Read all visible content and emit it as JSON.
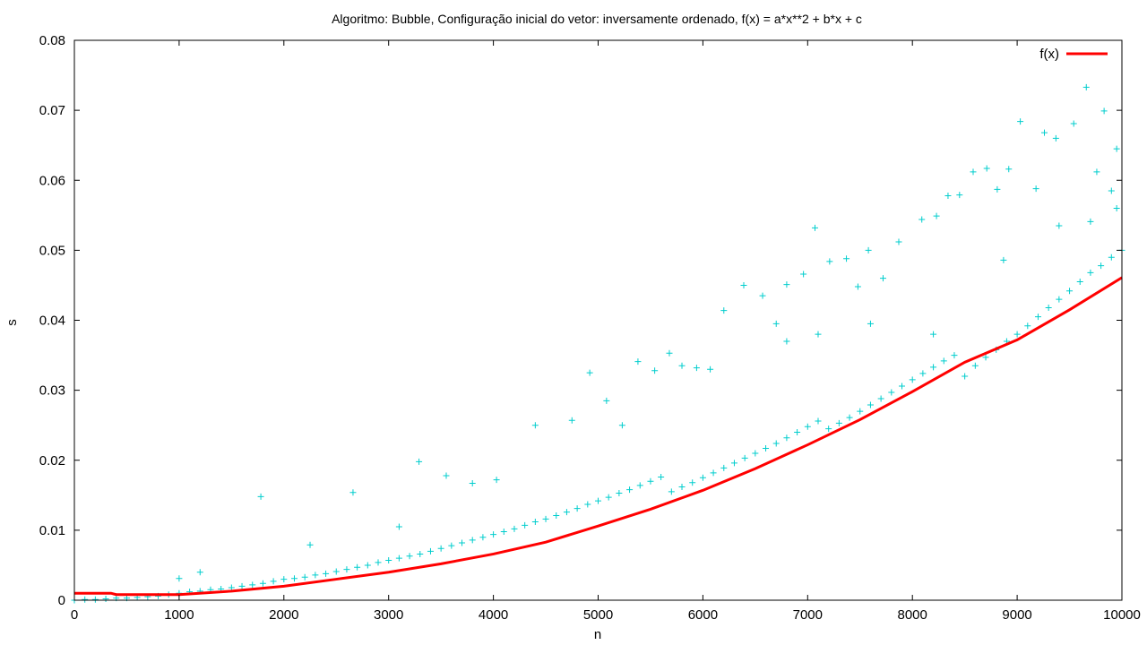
{
  "chart_data": {
    "type": "scatter",
    "title": "Algoritmo: Bubble, Configuração inicial do vetor: inversamente ordenado, f(x) = a*x**2 + b*x + c",
    "xlabel": "n",
    "ylabel": "s",
    "xlim": [
      0,
      10000
    ],
    "ylim": [
      0,
      0.08
    ],
    "x_ticks": [
      0,
      1000,
      2000,
      3000,
      4000,
      5000,
      6000,
      7000,
      8000,
      9000,
      10000
    ],
    "x_tick_labels": [
      "0",
      "1000",
      "2000",
      "3000",
      "4000",
      "5000",
      "6000",
      "7000",
      "8000",
      "9000",
      "10000"
    ],
    "y_ticks": [
      0,
      0.01,
      0.02,
      0.03,
      0.04,
      0.05,
      0.06,
      0.07,
      0.08
    ],
    "y_tick_labels": [
      "0",
      "0.01",
      "0.02",
      "0.03",
      "0.04",
      "0.05",
      "0.06",
      "0.07",
      "0.08"
    ],
    "grid": false,
    "legend": {
      "placement": "top-right",
      "entries": [
        "f(x)"
      ]
    },
    "series": [
      {
        "kind": "scatter",
        "marker": "+",
        "color": "#00cdcd",
        "points": [
          [
            0,
            0
          ],
          [
            100,
            0.0001
          ],
          [
            200,
            0.0001
          ],
          [
            300,
            0.0002
          ],
          [
            400,
            0.0003
          ],
          [
            500,
            0.0003
          ],
          [
            600,
            0.0004
          ],
          [
            700,
            0.0005
          ],
          [
            800,
            0.0006
          ],
          [
            900,
            0.0008
          ],
          [
            1000,
            0.001
          ],
          [
            1100,
            0.0012
          ],
          [
            1200,
            0.0013
          ],
          [
            1300,
            0.0015
          ],
          [
            1400,
            0.0016
          ],
          [
            1500,
            0.0018
          ],
          [
            1600,
            0.002
          ],
          [
            1700,
            0.0022
          ],
          [
            1800,
            0.0024
          ],
          [
            1900,
            0.0027
          ],
          [
            2000,
            0.003
          ],
          [
            2100,
            0.0031
          ],
          [
            2200,
            0.0033
          ],
          [
            2300,
            0.0036
          ],
          [
            2400,
            0.0038
          ],
          [
            2500,
            0.0041
          ],
          [
            2600,
            0.0044
          ],
          [
            2700,
            0.0047
          ],
          [
            2800,
            0.005
          ],
          [
            2900,
            0.0054
          ],
          [
            3000,
            0.0057
          ],
          [
            3100,
            0.006
          ],
          [
            3200,
            0.0063
          ],
          [
            3300,
            0.0066
          ],
          [
            3400,
            0.007
          ],
          [
            3500,
            0.0074
          ],
          [
            3600,
            0.0078
          ],
          [
            3700,
            0.0082
          ],
          [
            3800,
            0.0086
          ],
          [
            3900,
            0.009
          ],
          [
            4000,
            0.0094
          ],
          [
            4100,
            0.0098
          ],
          [
            4200,
            0.0102
          ],
          [
            4300,
            0.0107
          ],
          [
            4400,
            0.0112
          ],
          [
            4500,
            0.0116
          ],
          [
            4600,
            0.0121
          ],
          [
            4700,
            0.0126
          ],
          [
            4800,
            0.0131
          ],
          [
            4900,
            0.0137
          ],
          [
            5000,
            0.0142
          ],
          [
            5100,
            0.0147
          ],
          [
            5200,
            0.0153
          ],
          [
            5300,
            0.0158
          ],
          [
            5400,
            0.0164
          ],
          [
            5500,
            0.017
          ],
          [
            5600,
            0.0176
          ],
          [
            5700,
            0.0155
          ],
          [
            5800,
            0.0162
          ],
          [
            5900,
            0.0168
          ],
          [
            6000,
            0.0175
          ],
          [
            6100,
            0.0182
          ],
          [
            6200,
            0.0189
          ],
          [
            6300,
            0.0196
          ],
          [
            6400,
            0.0203
          ],
          [
            6500,
            0.021
          ],
          [
            6600,
            0.0217
          ],
          [
            6700,
            0.0224
          ],
          [
            6800,
            0.0232
          ],
          [
            6900,
            0.024
          ],
          [
            7000,
            0.0248
          ],
          [
            7100,
            0.0256
          ],
          [
            7200,
            0.0245
          ],
          [
            7300,
            0.0253
          ],
          [
            7400,
            0.0261
          ],
          [
            7500,
            0.027
          ],
          [
            7600,
            0.0279
          ],
          [
            7700,
            0.0288
          ],
          [
            7800,
            0.0297
          ],
          [
            7900,
            0.0306
          ],
          [
            8000,
            0.0315
          ],
          [
            8100,
            0.0324
          ],
          [
            8200,
            0.0333
          ],
          [
            8300,
            0.0342
          ],
          [
            8400,
            0.035
          ],
          [
            8500,
            0.032
          ],
          [
            8600,
            0.0335
          ],
          [
            8700,
            0.0347
          ],
          [
            8800,
            0.0358
          ],
          [
            8900,
            0.037
          ],
          [
            9000,
            0.038
          ],
          [
            9100,
            0.0392
          ],
          [
            9200,
            0.0405
          ],
          [
            9300,
            0.0418
          ],
          [
            9400,
            0.043
          ],
          [
            9500,
            0.0442
          ],
          [
            9600,
            0.0455
          ],
          [
            9700,
            0.0468
          ],
          [
            9800,
            0.0478
          ],
          [
            9900,
            0.049
          ],
          [
            10000,
            0.05
          ],
          [
            1000,
            0.0031
          ],
          [
            1200,
            0.004
          ],
          [
            1780,
            0.0148
          ],
          [
            2250,
            0.0079
          ],
          [
            2660,
            0.0154
          ],
          [
            3100,
            0.0105
          ],
          [
            3290,
            0.0198
          ],
          [
            3550,
            0.0178
          ],
          [
            3800,
            0.0167
          ],
          [
            4030,
            0.0172
          ],
          [
            4400,
            0.025
          ],
          [
            4750,
            0.0257
          ],
          [
            4920,
            0.0325
          ],
          [
            5080,
            0.0285
          ],
          [
            5230,
            0.025
          ],
          [
            5380,
            0.0341
          ],
          [
            5540,
            0.0328
          ],
          [
            5680,
            0.0353
          ],
          [
            5800,
            0.0335
          ],
          [
            5940,
            0.0332
          ],
          [
            6070,
            0.033
          ],
          [
            6200,
            0.0414
          ],
          [
            6390,
            0.045
          ],
          [
            6570,
            0.0435
          ],
          [
            6700,
            0.0395
          ],
          [
            6800,
            0.0451
          ],
          [
            6960,
            0.0466
          ],
          [
            7070,
            0.0532
          ],
          [
            7210,
            0.0484
          ],
          [
            7370,
            0.0488
          ],
          [
            7480,
            0.0448
          ],
          [
            7580,
            0.05
          ],
          [
            7720,
            0.046
          ],
          [
            7870,
            0.0512
          ],
          [
            8090,
            0.0544
          ],
          [
            8230,
            0.0549
          ],
          [
            8340,
            0.0578
          ],
          [
            8450,
            0.0579
          ],
          [
            8580,
            0.0612
          ],
          [
            8710,
            0.0617
          ],
          [
            8810,
            0.0587
          ],
          [
            8920,
            0.0616
          ],
          [
            9030,
            0.0684
          ],
          [
            9180,
            0.0588
          ],
          [
            9260,
            0.0668
          ],
          [
            9370,
            0.066
          ],
          [
            9540,
            0.0681
          ],
          [
            9660,
            0.0733
          ],
          [
            9760,
            0.0612
          ],
          [
            9830,
            0.0699
          ],
          [
            9950,
            0.0645
          ],
          [
            9900,
            0.0585
          ],
          [
            9950,
            0.056
          ],
          [
            9700,
            0.0541
          ],
          [
            9400,
            0.0535
          ],
          [
            8870,
            0.0486
          ],
          [
            8200,
            0.038
          ],
          [
            7600,
            0.0395
          ],
          [
            7100,
            0.038
          ],
          [
            6800,
            0.037
          ]
        ]
      },
      {
        "name": "f(x)",
        "kind": "line",
        "color": "#ff0000",
        "x": [
          0,
          350,
          400,
          500,
          1000,
          1500,
          2000,
          2500,
          3000,
          3500,
          4000,
          4500,
          5000,
          5500,
          6000,
          6500,
          7000,
          7500,
          8000,
          8500,
          9000,
          9500,
          10000
        ],
        "y": [
          0.001,
          0.001,
          0.0008,
          0.0008,
          0.0008,
          0.0013,
          0.002,
          0.003,
          0.004,
          0.0052,
          0.0066,
          0.0083,
          0.0106,
          0.013,
          0.0157,
          0.0188,
          0.0222,
          0.0258,
          0.0298,
          0.034,
          0.0372,
          0.0415,
          0.0461
        ]
      }
    ]
  }
}
